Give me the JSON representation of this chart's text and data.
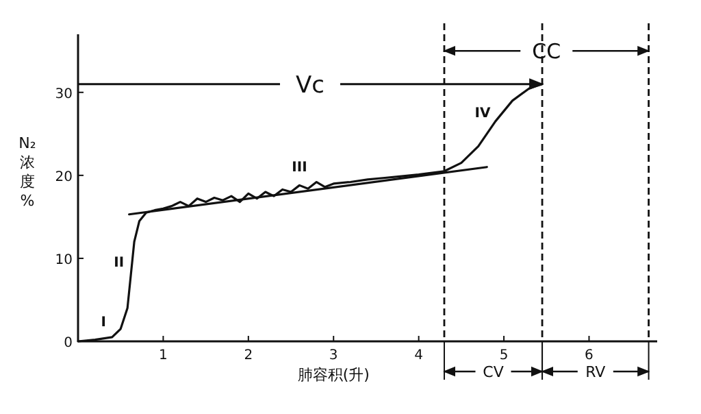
{
  "chart_data": {
    "type": "line",
    "xlabel": "肺容积(升)",
    "ylabel": "N₂浓度%",
    "xlim": [
      0,
      6.8
    ],
    "ylim": [
      0,
      37
    ],
    "xticks": [
      1,
      2,
      3,
      4,
      5,
      6
    ],
    "yticks": [
      0,
      10,
      20,
      30
    ],
    "series": [
      {
        "color": "#111111",
        "x": [
          0,
          0.2,
          0.4,
          0.5,
          0.58,
          0.62,
          0.66,
          0.72,
          0.8,
          0.9,
          1,
          1.1,
          1.2,
          1.3,
          1.4,
          1.5,
          1.6,
          1.7,
          1.8,
          1.9,
          2,
          2.1,
          2.2,
          2.3,
          2.4,
          2.5,
          2.6,
          2.7,
          2.8,
          2.9,
          3,
          3.2,
          3.4,
          3.6,
          3.8,
          4,
          4.3,
          4.5,
          4.7,
          4.9,
          5.1,
          5.3,
          5.45
        ],
        "values": [
          0,
          0.2,
          0.5,
          1.5,
          4,
          8,
          12,
          14.5,
          15.5,
          15.8,
          16,
          16.3,
          16.8,
          16.3,
          17.2,
          16.8,
          17.3,
          17,
          17.5,
          16.8,
          17.8,
          17.2,
          18,
          17.5,
          18.3,
          18,
          18.8,
          18.4,
          19.2,
          18.6,
          19,
          19.2,
          19.5,
          19.7,
          19.9,
          20.1,
          20.5,
          21.5,
          23.5,
          26.5,
          29,
          30.5,
          31
        ]
      },
      {
        "color": "#111111",
        "x": [
          0.6,
          4.8
        ],
        "values": [
          15.3,
          21
        ]
      }
    ],
    "ref_lines": [
      {
        "axis": "x",
        "value": 4.3,
        "line_style": "dashed",
        "color": "#111111"
      },
      {
        "axis": "x",
        "value": 5.45,
        "line_style": "dashed",
        "color": "#111111"
      },
      {
        "axis": "x",
        "value": 6.7,
        "line_style": "dashed",
        "color": "#111111"
      },
      {
        "axis": "y",
        "value": 31,
        "label": "Vc",
        "color": "#111111"
      }
    ],
    "annotations": [
      "I",
      "II",
      "III",
      "IV",
      {
        "text": "CC",
        "x": 6.7,
        "y": 35
      },
      "CV",
      "RV"
    ]
  }
}
